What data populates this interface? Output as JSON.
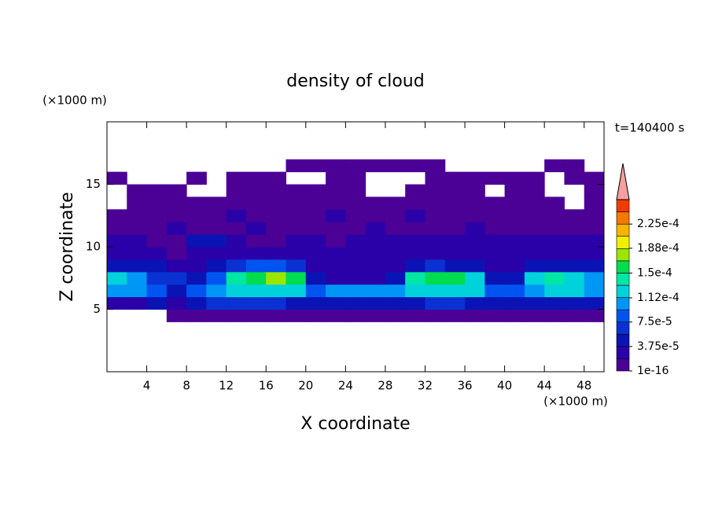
{
  "chart_data": {
    "type": "contour",
    "title": "density of cloud",
    "xlabel": "X coordinate",
    "ylabel": "Z coordinate",
    "x_unit": "(×1000 m)",
    "y_unit": "(×1000 m)",
    "annotation": "t=140400 s",
    "xlim": [
      0,
      50
    ],
    "ylim": [
      0,
      20
    ],
    "xticks": [
      4,
      8,
      12,
      16,
      20,
      24,
      28,
      32,
      36,
      40,
      44,
      48
    ],
    "yticks": [
      5,
      10,
      15
    ],
    "x": [
      1,
      3,
      5,
      7,
      9,
      11,
      13,
      15,
      17,
      19,
      21,
      23,
      25,
      27,
      29,
      31,
      33,
      35,
      37,
      39,
      41,
      43,
      45,
      47,
      49
    ],
    "y": [
      4.5,
      5.5,
      6.5,
      7.5,
      8.5,
      9.5,
      10.5,
      11.5,
      12.5,
      13.5,
      14.5,
      15.5,
      16.5
    ],
    "z": [
      [
        null,
        null,
        null,
        1e-05,
        1e-05,
        1e-05,
        1e-05,
        1e-05,
        1e-05,
        1e-05,
        1e-05,
        1e-05,
        1e-05,
        1e-05,
        1e-05,
        1e-05,
        1e-05,
        1e-05,
        1e-05,
        1e-05,
        1e-05,
        1e-05,
        1e-05,
        1e-05,
        1e-05
      ],
      [
        3e-05,
        3e-05,
        4e-05,
        3e-05,
        4e-05,
        6e-05,
        6e-05,
        6e-05,
        6e-05,
        5e-05,
        5e-05,
        4e-05,
        4e-05,
        5e-05,
        5e-05,
        5e-05,
        6e-05,
        6e-05,
        5e-05,
        4e-05,
        4e-05,
        5e-05,
        5e-05,
        5e-05,
        5e-05
      ],
      [
        0.00011,
        0.0001,
        9e-05,
        5e-05,
        8e-05,
        0.00011,
        0.00012,
        0.00013,
        0.00013,
        0.00012,
        9e-05,
        0.0001,
        0.0001,
        0.0001,
        0.00011,
        0.00013,
        0.00013,
        0.00013,
        0.00012,
        8e-05,
        9e-05,
        0.00011,
        0.00012,
        0.00012,
        0.00011
      ],
      [
        0.00012,
        0.00011,
        6e-05,
        7e-05,
        4e-05,
        9e-05,
        0.00014,
        0.00016,
        0.00017,
        0.00015,
        5e-05,
        3e-05,
        3e-05,
        3e-05,
        4e-05,
        0.00014,
        0.00016,
        0.00015,
        0.00012,
        4e-05,
        4e-05,
        0.00012,
        0.00014,
        0.00012,
        0.00011
      ],
      [
        5e-05,
        4e-05,
        4e-05,
        3e-05,
        3e-05,
        5e-05,
        7e-05,
        8e-05,
        8e-05,
        6e-05,
        3e-05,
        3e-05,
        3e-05,
        3e-05,
        3e-05,
        5e-05,
        6e-05,
        5e-05,
        4e-05,
        3e-05,
        3e-05,
        5e-05,
        5e-05,
        4e-05,
        4e-05
      ],
      [
        3e-05,
        2e-05,
        2e-05,
        1e-05,
        2e-05,
        3e-05,
        3e-05,
        2e-05,
        2e-05,
        3e-05,
        2e-05,
        2e-05,
        2e-05,
        2e-05,
        3e-05,
        3e-05,
        3e-05,
        3e-05,
        3e-05,
        2e-05,
        3e-05,
        3e-05,
        3e-05,
        3e-05,
        3e-05
      ],
      [
        2e-05,
        2e-05,
        1e-05,
        1e-05,
        4e-05,
        4e-05,
        2e-05,
        1e-05,
        1e-05,
        2e-05,
        2e-05,
        1e-05,
        2e-05,
        2e-05,
        2e-05,
        2e-05,
        3e-05,
        2e-05,
        2e-05,
        2e-05,
        2e-05,
        2e-05,
        2e-05,
        2e-05,
        2e-05
      ],
      [
        1e-05,
        1e-05,
        1e-05,
        2e-05,
        1e-05,
        1e-05,
        1e-05,
        2e-05,
        1e-05,
        1e-05,
        1e-05,
        1e-05,
        1e-05,
        2e-05,
        1e-05,
        1e-05,
        1e-05,
        1e-05,
        2e-05,
        1e-05,
        1e-05,
        1e-05,
        1e-05,
        1e-05,
        1e-05
      ],
      [
        1e-05,
        1e-05,
        1e-05,
        1e-05,
        1e-05,
        1e-05,
        2e-05,
        1e-05,
        1e-05,
        1e-05,
        1e-05,
        2e-05,
        1e-05,
        1e-05,
        1e-05,
        2e-05,
        1e-05,
        1e-05,
        1e-05,
        1e-05,
        1e-05,
        1e-05,
        1e-05,
        1e-05,
        1e-05
      ],
      [
        null,
        1e-05,
        1e-05,
        1e-05,
        1e-05,
        1e-05,
        1e-05,
        1e-05,
        1e-05,
        1e-05,
        1e-05,
        1e-05,
        1e-05,
        1e-05,
        1e-05,
        1e-05,
        1e-05,
        1e-05,
        1e-05,
        1e-05,
        1e-05,
        1e-05,
        1e-05,
        null,
        1e-05
      ],
      [
        null,
        1e-05,
        1e-05,
        1e-05,
        null,
        null,
        1e-05,
        1e-05,
        1e-05,
        1e-05,
        1e-05,
        1e-05,
        1e-05,
        null,
        null,
        1e-05,
        1e-05,
        1e-05,
        1e-05,
        null,
        1e-05,
        1e-05,
        null,
        null,
        1e-05
      ],
      [
        1e-05,
        null,
        null,
        null,
        1e-05,
        null,
        1e-05,
        1e-05,
        1e-05,
        null,
        null,
        1e-05,
        1e-05,
        null,
        null,
        null,
        1e-05,
        1e-05,
        1e-05,
        1e-05,
        1e-05,
        1e-05,
        null,
        1e-05,
        1e-05
      ],
      [
        null,
        null,
        null,
        null,
        null,
        null,
        null,
        null,
        null,
        1e-05,
        1e-05,
        1e-05,
        1e-05,
        1e-05,
        1e-05,
        1e-05,
        1e-05,
        null,
        null,
        null,
        null,
        null,
        1e-05,
        1e-05,
        null
      ]
    ],
    "colorbar": {
      "levels": [
        1e-16,
        1.875e-05,
        3.75e-05,
        5.625e-05,
        7.5e-05,
        9.375e-05,
        0.0001125,
        0.00013125,
        0.00015,
        0.00016875,
        0.0001875,
        0.00020625,
        0.000225,
        0.00024375,
        0.0002625
      ],
      "colors": [
        "#4b0096",
        "#2a00a8",
        "#0a14b4",
        "#0a32d2",
        "#0055f0",
        "#0096f5",
        "#00d2dc",
        "#00e6a5",
        "#00dc50",
        "#9be600",
        "#f0f000",
        "#f5b400",
        "#f57800",
        "#f03c00"
      ],
      "extend_color": "#f5a0a0",
      "ticks": [
        {
          "value": 1e-16,
          "label": "1e-16"
        },
        {
          "value": 3.75e-05,
          "label": "3.75e-5"
        },
        {
          "value": 7.5e-05,
          "label": "7.5e-5"
        },
        {
          "value": 0.000112,
          "label": "1.12e-4"
        },
        {
          "value": 0.00015,
          "label": "1.5e-4"
        },
        {
          "value": 0.000188,
          "label": "1.88e-4"
        },
        {
          "value": 0.000225,
          "label": "2.25e-4"
        }
      ]
    }
  }
}
